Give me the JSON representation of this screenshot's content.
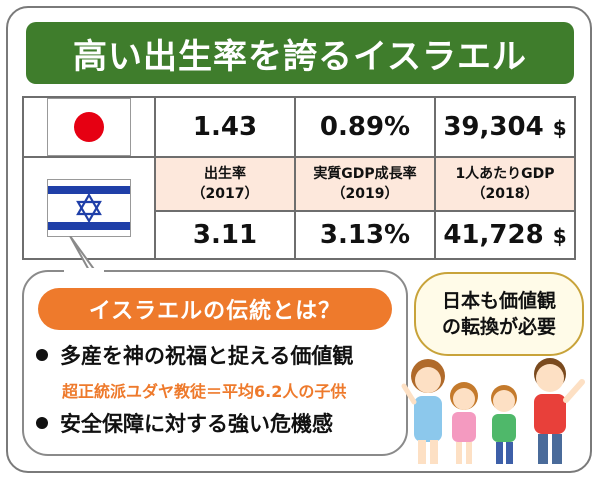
{
  "title": "高い出生率を誇るイスラエル",
  "flags": {
    "japan": "japan-flag-icon",
    "israel": "israel-flag-icon"
  },
  "table": {
    "japan_row": [
      "1.43",
      "0.89%",
      "39,304",
      "$"
    ],
    "labels": [
      {
        "line1": "出生率",
        "line2": "（2017）"
      },
      {
        "line1": "実質GDP成長率",
        "line2": "（2019）"
      },
      {
        "line1": "1人あたりGDP",
        "line2": "（2018）"
      }
    ],
    "israel_row": [
      "3.11",
      "3.13%",
      "41,728",
      "$"
    ]
  },
  "tradition": {
    "heading": "イスラエルの伝統とは？",
    "item1": "多産を神の祝福と捉える価値観",
    "sub1": "超正統派ユダヤ教徒＝平均6.2人の子供",
    "item2": "安全保障に対する強い危機感"
  },
  "callout": {
    "line1": "日本も価値観",
    "line2": "の転換が必要"
  },
  "colors": {
    "title_bg": "#3f7d2c",
    "accent_orange": "#ee7a2c",
    "label_bg": "#fde8dc",
    "japan_red": "#e60012",
    "israel_blue": "#1f3fa8"
  }
}
